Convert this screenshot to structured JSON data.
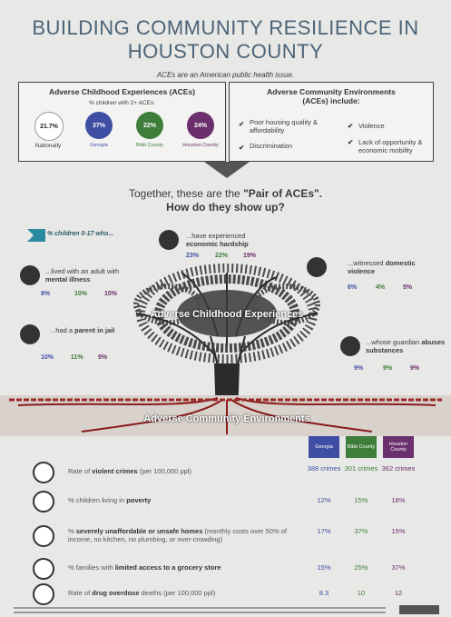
{
  "header": {
    "title": "BUILDING COMMUNITY RESILIENCE IN HOUSTON COUNTY",
    "subtitle": "ACEs are an American public health issue."
  },
  "childhood_box": {
    "title": "Adverse Childhood Experiences (ACEs)",
    "subtitle": "% children with 2+ ACEs:",
    "items": [
      {
        "value": "21.7%",
        "label": "Nationally"
      },
      {
        "value": "37%",
        "label": "Georgia"
      },
      {
        "value": "22%",
        "label": "Bibb County"
      },
      {
        "value": "24%",
        "label": "Houston County"
      }
    ]
  },
  "community_box": {
    "title": "Adverse Community Environments (ACEs) include:",
    "items": [
      "Poor housing quality & affordability",
      "Violence",
      "Discrimination",
      "Lack of opportunity & economic mobility"
    ]
  },
  "pair": {
    "line1": "Together, these are the",
    "line1_bold": "\"Pair of ACEs\".",
    "line2": "How do they show up?"
  },
  "indicators": {
    "intro": "% children 0-17 who...",
    "items": [
      {
        "text": "...have experienced",
        "bold": "economic hardship",
        "values": [
          "23%",
          "22%",
          "19%"
        ]
      },
      {
        "text": "...lived with an adult with",
        "bold": "mental illness",
        "values": [
          "8%",
          "10%",
          "10%"
        ]
      },
      {
        "text": "...witnessed",
        "bold": "domestic violence",
        "values": [
          "6%",
          "4%",
          "5%"
        ]
      },
      {
        "text": "...had a",
        "bold": "parent in jail",
        "values": [
          "10%",
          "11%",
          "9%"
        ]
      },
      {
        "text": "...whose guardian",
        "bold": "abuses substances",
        "values": [
          "9%",
          "9%",
          "9%"
        ]
      }
    ]
  },
  "tree": {
    "crown": "Adverse Childhood Experiences",
    "roots": "Adverse Community Environments"
  },
  "table": {
    "columns": [
      "Georgia",
      "Bibb County",
      "Houston County"
    ],
    "rows": [
      {
        "pre": "Rate of",
        "bold": "violent crimes",
        "post": "(per 100,000 ppl)",
        "values": [
          "388 crimes",
          "301 crimes",
          "362 crimes"
        ]
      },
      {
        "pre": "% children living in",
        "bold": "poverty",
        "values": [
          "12%",
          "15%",
          "18%"
        ]
      },
      {
        "pre": "%",
        "bold": "severely unaffordable or unsafe homes",
        "post": "(monthly costs over 50% of income, no kitchen, no plumbing, or over-crowding)",
        "values": [
          "17%",
          "37%",
          "15%"
        ]
      },
      {
        "pre": "% families with",
        "bold": "limited access to a grocery store",
        "values": [
          "15%",
          "25%",
          "37%"
        ]
      },
      {
        "pre": "Rate of",
        "bold": "drug overdose",
        "post": "deaths (per 100,000 ppl)",
        "values": [
          "8.3",
          "10",
          "12"
        ]
      }
    ]
  }
}
